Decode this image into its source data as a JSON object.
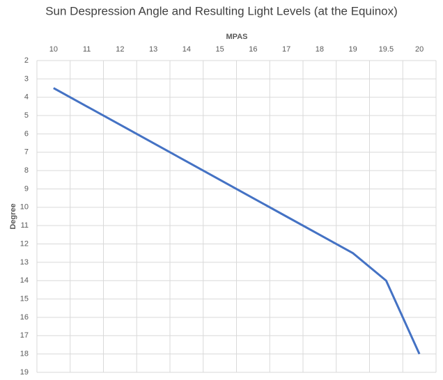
{
  "chart_data": {
    "type": "line",
    "title": "Sun Despression Angle and Resulting Light Levels (at the Equinox)",
    "x_label": "MPAS",
    "y_label": "Degree",
    "categories": [
      "10",
      "11",
      "12",
      "13",
      "14",
      "15",
      "16",
      "17",
      "18",
      "19",
      "19.5",
      "20"
    ],
    "series": [
      {
        "name": "Degree",
        "color": "#4472c4",
        "values": [
          3.5,
          4.5,
          5.5,
          6.5,
          7.5,
          8.5,
          9.5,
          10.5,
          11.5,
          12.5,
          14,
          18
        ]
      }
    ],
    "ylim": [
      2,
      19
    ],
    "yticks": [
      2,
      3,
      4,
      5,
      6,
      7,
      8,
      9,
      10,
      11,
      12,
      13,
      14,
      15,
      16,
      17,
      18,
      19
    ],
    "y_reversed": true,
    "x_axis_position": "top",
    "grid": true
  }
}
